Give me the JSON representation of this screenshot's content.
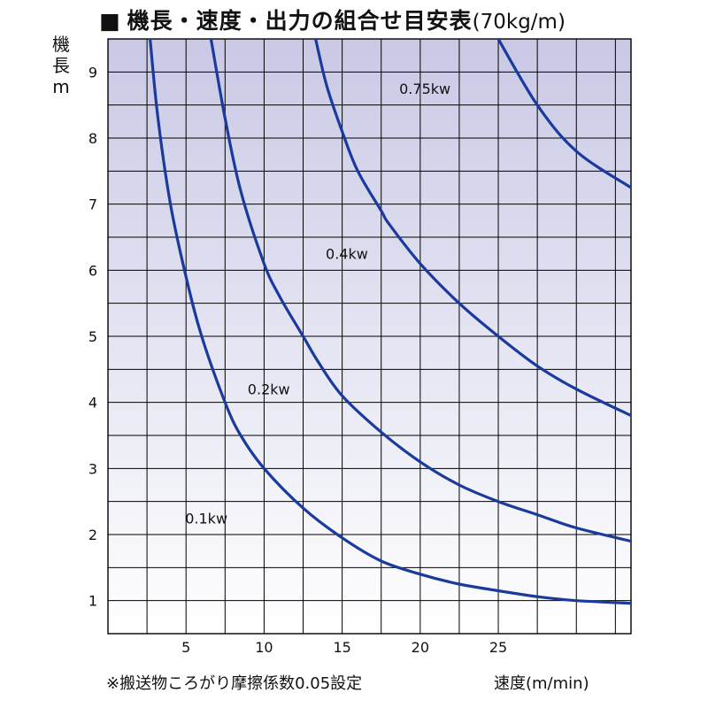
{
  "title": {
    "marker": "■",
    "main": "機長・速度・出力の組合せ目安表",
    "unit": "(70kg/m)"
  },
  "y_axis_label": [
    "機",
    "長",
    "m"
  ],
  "x_axis_label": "速度(m/min)",
  "footnote": "※搬送物ころがり摩擦係数0.05設定",
  "colors": {
    "curve": "#1a3a9c",
    "grid": "#000000",
    "gradient_top": "#c9c9e6",
    "gradient_bottom": "#ffffff"
  },
  "chart_data": {
    "type": "line",
    "xlabel": "速度(m/min)",
    "ylabel": "機長 m",
    "xlim": [
      0,
      33.5
    ],
    "ylim": [
      0.5,
      9.5
    ],
    "x_ticks": [
      5,
      10,
      15,
      20,
      25
    ],
    "y_ticks": [
      1,
      2,
      3,
      4,
      5,
      6,
      7,
      8,
      9
    ],
    "grid": true,
    "series": [
      {
        "name": "0.1kw",
        "x": [
          2.7,
          3.2,
          4.0,
          5.0,
          6.0,
          7.5,
          8.5,
          10,
          12.5,
          15,
          17.5,
          20,
          22.5,
          25,
          27.5,
          30,
          33.5
        ],
        "y": [
          9.5,
          8.3,
          7.0,
          5.9,
          5.0,
          4.0,
          3.5,
          3.0,
          2.4,
          1.95,
          1.6,
          1.4,
          1.25,
          1.15,
          1.06,
          1.0,
          0.96
        ]
      },
      {
        "name": "0.2kw",
        "x": [
          6.6,
          7.5,
          8.5,
          10,
          11,
          12.5,
          13.5,
          15,
          17.5,
          20,
          22.5,
          25,
          27.5,
          30,
          33.5
        ],
        "y": [
          9.5,
          8.3,
          7.2,
          6.1,
          5.6,
          5.0,
          4.6,
          4.1,
          3.55,
          3.1,
          2.75,
          2.5,
          2.3,
          2.1,
          1.9
        ]
      },
      {
        "name": "0.4kw",
        "x": [
          13.3,
          14,
          15,
          16,
          17.5,
          18,
          20,
          22.5,
          25,
          27.5,
          30,
          33.5
        ],
        "y": [
          9.5,
          8.8,
          8.1,
          7.5,
          6.9,
          6.7,
          6.1,
          5.5,
          5.0,
          4.55,
          4.2,
          3.8
        ]
      },
      {
        "name": "0.75kw",
        "x": [
          25,
          27.5,
          30,
          33.5
        ],
        "y": [
          9.5,
          8.5,
          7.8,
          7.25
        ]
      }
    ],
    "annotations": [
      {
        "text": "0.1kw",
        "x": 6.3,
        "y": 2.25
      },
      {
        "text": "0.2kw",
        "x": 10.3,
        "y": 4.2
      },
      {
        "text": "0.4kw",
        "x": 15.3,
        "y": 6.25
      },
      {
        "text": "0.75kw",
        "x": 20.3,
        "y": 8.75
      }
    ]
  }
}
